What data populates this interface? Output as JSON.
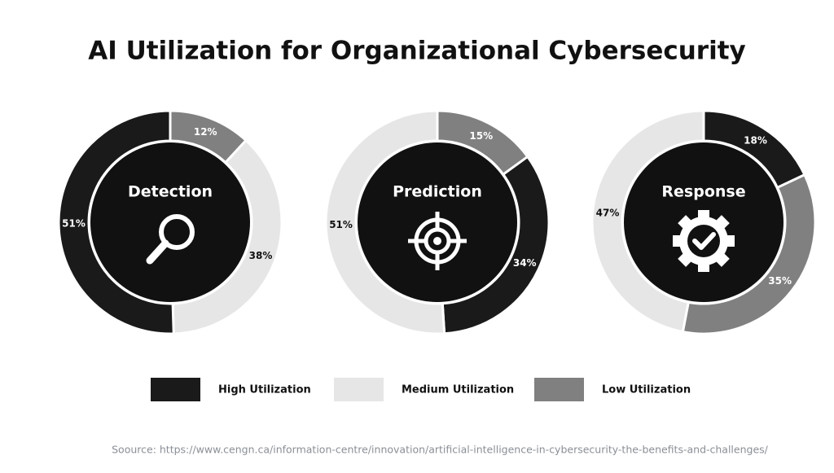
{
  "title": "AI Utilization for Organizational Cybersecurity",
  "chart_data": [
    {
      "type": "pie",
      "title": "Detection",
      "values": [
        12,
        38,
        51
      ],
      "value_labels": [
        "12%",
        "38%",
        "51%"
      ],
      "colors": [
        "#808080",
        "#e6e6e6",
        "#1a1a1a"
      ]
    },
    {
      "type": "pie",
      "title": "Prediction",
      "values": [
        15,
        34,
        51
      ],
      "value_labels": [
        "15%",
        "34%",
        "51%"
      ],
      "colors": [
        "#808080",
        "#1a1a1a",
        "#e6e6e6"
      ]
    },
    {
      "type": "pie",
      "title": "Response",
      "values": [
        18,
        35,
        47
      ],
      "value_labels": [
        "18%",
        "35%",
        "47%"
      ],
      "colors": [
        "#1a1a1a",
        "#808080",
        "#e6e6e6"
      ]
    }
  ],
  "legend": [
    {
      "name": "High Utilization",
      "color": "#1a1a1a"
    },
    {
      "name": "Medium Utilization",
      "color": "#e6e6e6"
    },
    {
      "name": "Low Utilization",
      "color": "#808080"
    }
  ],
  "source": "Soource: https://www.cengn.ca/information-centre/innovation/artificial-intelligence-in-cybersecurity-the-benefits-and-challenges/"
}
